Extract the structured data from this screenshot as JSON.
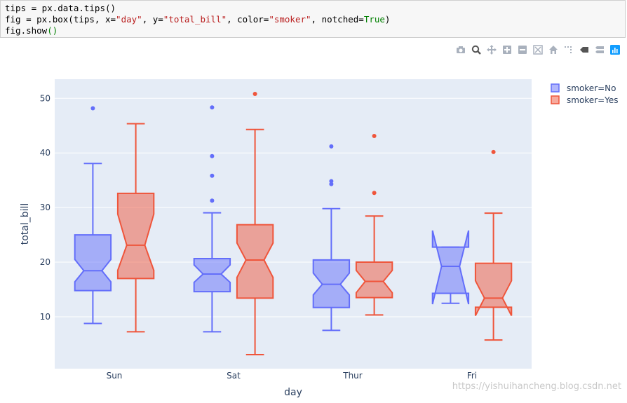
{
  "code": {
    "line1_a": "tips = px.data.tips()",
    "line2_a": "fig = px.box(tips, x=",
    "line2_s1": "\"day\"",
    "line2_b": ", y=",
    "line2_s2": "\"total_bill\"",
    "line2_c": ", color=",
    "line2_s3": "\"smoker\"",
    "line2_d": ", notched=",
    "line2_kw": "True",
    "line2_e": ")",
    "line3_a": "fig.show",
    "line3_b": "()"
  },
  "modebar": [
    "camera-icon",
    "zoom-icon",
    "pan-icon",
    "zoom-in-icon",
    "zoom-out-icon",
    "autoscale-icon",
    "home-icon",
    "spike-lines-icon",
    "hover-closest-icon",
    "hover-compare-icon",
    "plotly-logo-icon"
  ],
  "watermark": "https://yishuihancheng.blog.csdn.net",
  "chart_data": {
    "type": "box",
    "xlabel": "day",
    "ylabel": "total_bill",
    "categories": [
      "Sun",
      "Sat",
      "Thur",
      "Fri"
    ],
    "ylim": [
      0.5,
      53.5
    ],
    "yticks": [
      10,
      20,
      30,
      40,
      50
    ],
    "grid": true,
    "notched": true,
    "legend_position": "top-right",
    "colors": {
      "No": "#636efa",
      "Yes": "#ef553b"
    },
    "plot_bg": "#e5ecf6",
    "series": [
      {
        "name": "smoker=No",
        "boxes": [
          {
            "category": "Sun",
            "lowerfence": 8.77,
            "q1": 14.8,
            "median": 18.43,
            "q3": 25.0,
            "upperfence": 38.07,
            "notch_low": 16.4,
            "notch_high": 20.5,
            "outliers": [
              48.17
            ]
          },
          {
            "category": "Sat",
            "lowerfence": 7.25,
            "q1": 14.6,
            "median": 17.82,
            "q3": 20.65,
            "upperfence": 29.03,
            "notch_low": 16.3,
            "notch_high": 19.5,
            "outliers": [
              48.33,
              39.42,
              35.83,
              31.27
            ]
          },
          {
            "category": "Thur",
            "lowerfence": 7.51,
            "q1": 11.69,
            "median": 15.95,
            "q3": 20.4,
            "upperfence": 29.8,
            "notch_low": 14.0,
            "notch_high": 18.0,
            "outliers": [
              41.19,
              34.83,
              34.3
            ]
          },
          {
            "category": "Fri",
            "lowerfence": 12.46,
            "q1": 14.3,
            "median": 19.23,
            "q3": 22.75,
            "upperfence": 22.75,
            "notch_low": 12.3,
            "notch_high": 25.8,
            "outliers": []
          }
        ]
      },
      {
        "name": "smoker=Yes",
        "boxes": [
          {
            "category": "Sun",
            "lowerfence": 7.25,
            "q1": 17.0,
            "median": 23.1,
            "q3": 32.6,
            "upperfence": 45.35,
            "notch_low": 18.5,
            "notch_high": 28.8,
            "outliers": []
          },
          {
            "category": "Sat",
            "lowerfence": 3.07,
            "q1": 13.42,
            "median": 20.39,
            "q3": 26.86,
            "upperfence": 44.3,
            "notch_low": 17.2,
            "notch_high": 23.5,
            "outliers": [
              50.81
            ]
          },
          {
            "category": "Thur",
            "lowerfence": 10.34,
            "q1": 13.51,
            "median": 16.47,
            "q3": 20.0,
            "upperfence": 28.44,
            "notch_low": 14.4,
            "notch_high": 18.5,
            "outliers": [
              43.11,
              32.68
            ]
          },
          {
            "category": "Fri",
            "lowerfence": 5.75,
            "q1": 11.74,
            "median": 13.42,
            "q3": 19.8,
            "upperfence": 28.97,
            "notch_low": 10.2,
            "notch_high": 16.6,
            "outliers": [
              40.17
            ]
          }
        ]
      }
    ]
  }
}
